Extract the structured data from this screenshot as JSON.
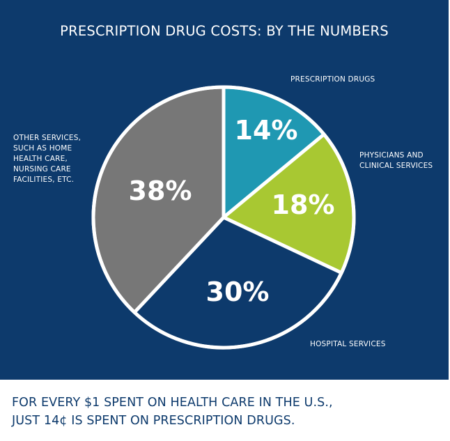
{
  "chart_data": {
    "type": "pie",
    "title": "PRESCRIPTION DRUG COSTS: BY THE NUMBERS",
    "categories": [
      "PRESCRIPTION DRUGS",
      "PHYSICIANS AND CLINICAL SERVICES",
      "HOSPITAL SERVICES",
      "OTHER SERVICES, SUCH AS HOME HEALTH CARE, NURSING CARE FACILITIES, ETC."
    ],
    "values": [
      14,
      18,
      30,
      38
    ],
    "value_labels": [
      "14%",
      "18%",
      "30%",
      "38%"
    ],
    "colors": [
      "#1f98b2",
      "#a8c832",
      "#0d3a6c",
      "#777777"
    ],
    "label_lines": [
      [
        "PRESCRIPTION DRUGS"
      ],
      [
        "PHYSICIANS AND",
        "CLINICAL SERVICES"
      ],
      [
        "HOSPITAL SERVICES"
      ],
      [
        "OTHER SERVICES,",
        "SUCH AS HOME",
        "HEALTH CARE,",
        "NURSING CARE",
        "FACILITIES, ETC."
      ]
    ]
  },
  "footer": {
    "line1": "FOR EVERY $1 SPENT ON HEALTH CARE IN THE U.S.,",
    "line2": "JUST 14¢ IS SPENT ON PRESCRIPTION DRUGS."
  },
  "colors": {
    "background": "#0d3a6c",
    "text": "#ffffff",
    "footer_text": "#0d3a6c",
    "slice_border": "#ffffff"
  }
}
